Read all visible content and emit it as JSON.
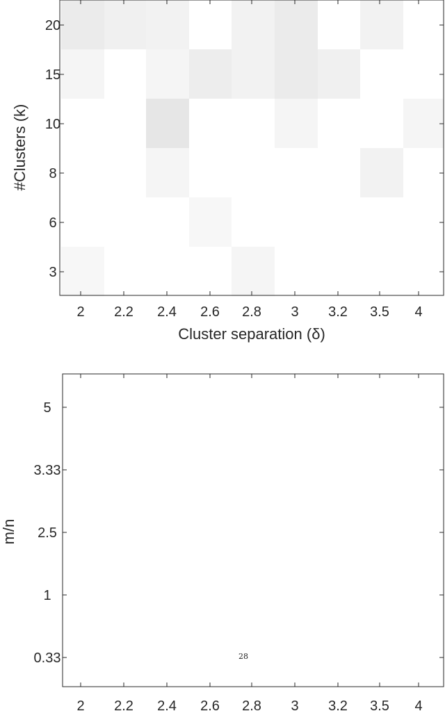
{
  "chart_data": [
    {
      "type": "heatmap",
      "xlabel": "Cluster separation (δ)",
      "ylabel": "#Clusters (k)",
      "x_categories": [
        "2",
        "2.2",
        "2.4",
        "2.6",
        "2.8",
        "3",
        "3.2",
        "3.5",
        "4"
      ],
      "y_categories": [
        "20",
        "15",
        "10",
        "8",
        "6",
        "3"
      ],
      "value_range": [
        0,
        1
      ],
      "values": [
        [
          0.08,
          0.06,
          0.05,
          0.0,
          0.05,
          0.08,
          0.0,
          0.05,
          0.0
        ],
        [
          0.04,
          0.0,
          0.04,
          0.07,
          0.05,
          0.08,
          0.06,
          0.0,
          0.0
        ],
        [
          0.0,
          0.0,
          0.1,
          0.0,
          0.0,
          0.04,
          0.0,
          0.0,
          0.04
        ],
        [
          0.0,
          0.0,
          0.04,
          0.0,
          0.0,
          0.0,
          0.0,
          0.05,
          0.0
        ],
        [
          0.0,
          0.0,
          0.0,
          0.03,
          0.0,
          0.0,
          0.0,
          0.0,
          0.0
        ],
        [
          0.03,
          0.0,
          0.0,
          0.0,
          0.04,
          0.0,
          0.0,
          0.0,
          0.0
        ]
      ]
    },
    {
      "type": "heatmap",
      "ylabel": "m/n",
      "x_categories": [
        "2",
        "2.2",
        "2.4",
        "2.6",
        "2.8",
        "3",
        "3.2",
        "3.5",
        "4"
      ],
      "y_categories": [
        "5",
        "3.33",
        "2.5",
        "1",
        "0.33"
      ],
      "value_range": [
        0,
        1
      ],
      "values": [
        [
          0,
          0,
          0,
          0,
          0,
          0,
          0,
          0,
          0
        ],
        [
          0,
          0,
          0,
          0,
          0,
          0,
          0,
          0,
          0
        ],
        [
          0,
          0,
          0,
          0,
          0,
          0,
          0,
          0,
          0
        ],
        [
          0,
          0,
          0,
          0,
          0,
          0,
          0,
          0,
          0
        ],
        [
          0,
          0,
          0,
          0,
          0,
          0,
          0,
          0,
          0
        ]
      ],
      "annotations": [
        {
          "text": "28",
          "x": "2.8",
          "y": "0.33"
        }
      ]
    }
  ]
}
